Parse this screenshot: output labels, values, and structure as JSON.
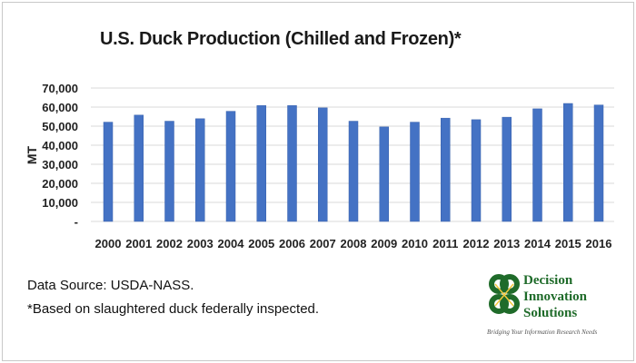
{
  "chart_data": {
    "type": "bar",
    "title": "U.S. Duck Production (Chilled and Frozen)*",
    "xlabel": "",
    "ylabel": "MT",
    "categories": [
      "2000",
      "2001",
      "2002",
      "2003",
      "2004",
      "2005",
      "2006",
      "2007",
      "2008",
      "2009",
      "2010",
      "2011",
      "2012",
      "2013",
      "2014",
      "2015",
      "2016"
    ],
    "values": [
      52100,
      55800,
      52600,
      53900,
      57800,
      60800,
      60800,
      59600,
      52600,
      49600,
      52100,
      54200,
      53400,
      54700,
      59100,
      61900,
      61100
    ],
    "ylim": [
      0,
      70000
    ],
    "yticks": [
      "-",
      "10,000",
      "20,000",
      "30,000",
      "40,000",
      "50,000",
      "60,000",
      "70,000"
    ],
    "grid": true,
    "bar_color": "#4472c4"
  },
  "notes": {
    "source": "Data Source: USDA-NASS.",
    "footnote": "*Based on slaughtered duck federally inspected."
  },
  "logo": {
    "line1": "Decision",
    "line2": "Innovation",
    "line3": "Solutions",
    "tagline": "Bridging Your Information Research Needs",
    "color": "#1f6b2a"
  }
}
